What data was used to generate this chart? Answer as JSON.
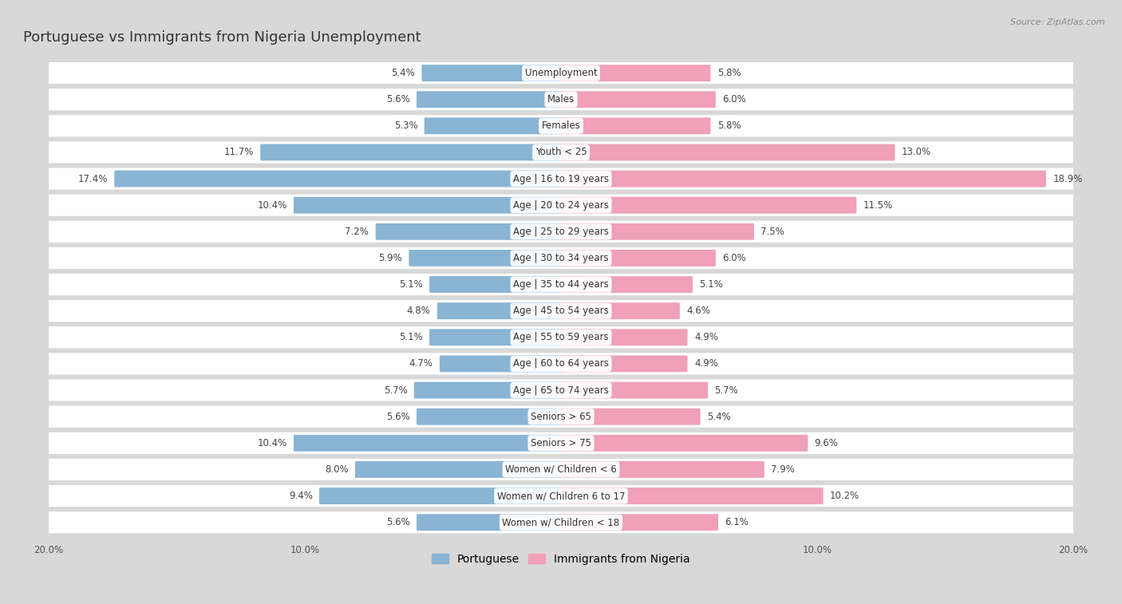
{
  "title": "Portuguese vs Immigrants from Nigeria Unemployment",
  "source": "Source: ZipAtlas.com",
  "categories": [
    "Unemployment",
    "Males",
    "Females",
    "Youth < 25",
    "Age | 16 to 19 years",
    "Age | 20 to 24 years",
    "Age | 25 to 29 years",
    "Age | 30 to 34 years",
    "Age | 35 to 44 years",
    "Age | 45 to 54 years",
    "Age | 55 to 59 years",
    "Age | 60 to 64 years",
    "Age | 65 to 74 years",
    "Seniors > 65",
    "Seniors > 75",
    "Women w/ Children < 6",
    "Women w/ Children 6 to 17",
    "Women w/ Children < 18"
  ],
  "portuguese_values": [
    5.4,
    5.6,
    5.3,
    11.7,
    17.4,
    10.4,
    7.2,
    5.9,
    5.1,
    4.8,
    5.1,
    4.7,
    5.7,
    5.6,
    10.4,
    8.0,
    9.4,
    5.6
  ],
  "nigeria_values": [
    5.8,
    6.0,
    5.8,
    13.0,
    18.9,
    11.5,
    7.5,
    6.0,
    5.1,
    4.6,
    4.9,
    4.9,
    5.7,
    5.4,
    9.6,
    7.9,
    10.2,
    6.1
  ],
  "portuguese_color": "#8ab4d4",
  "nigeria_color": "#f0a0b8",
  "row_color_light": "#ffffff",
  "row_color_dark": "#e8e8e8",
  "background_color": "#d8d8d8",
  "axis_max": 20.0,
  "title_fontsize": 13,
  "label_fontsize": 8.5,
  "value_fontsize": 8.5,
  "legend_fontsize": 10
}
